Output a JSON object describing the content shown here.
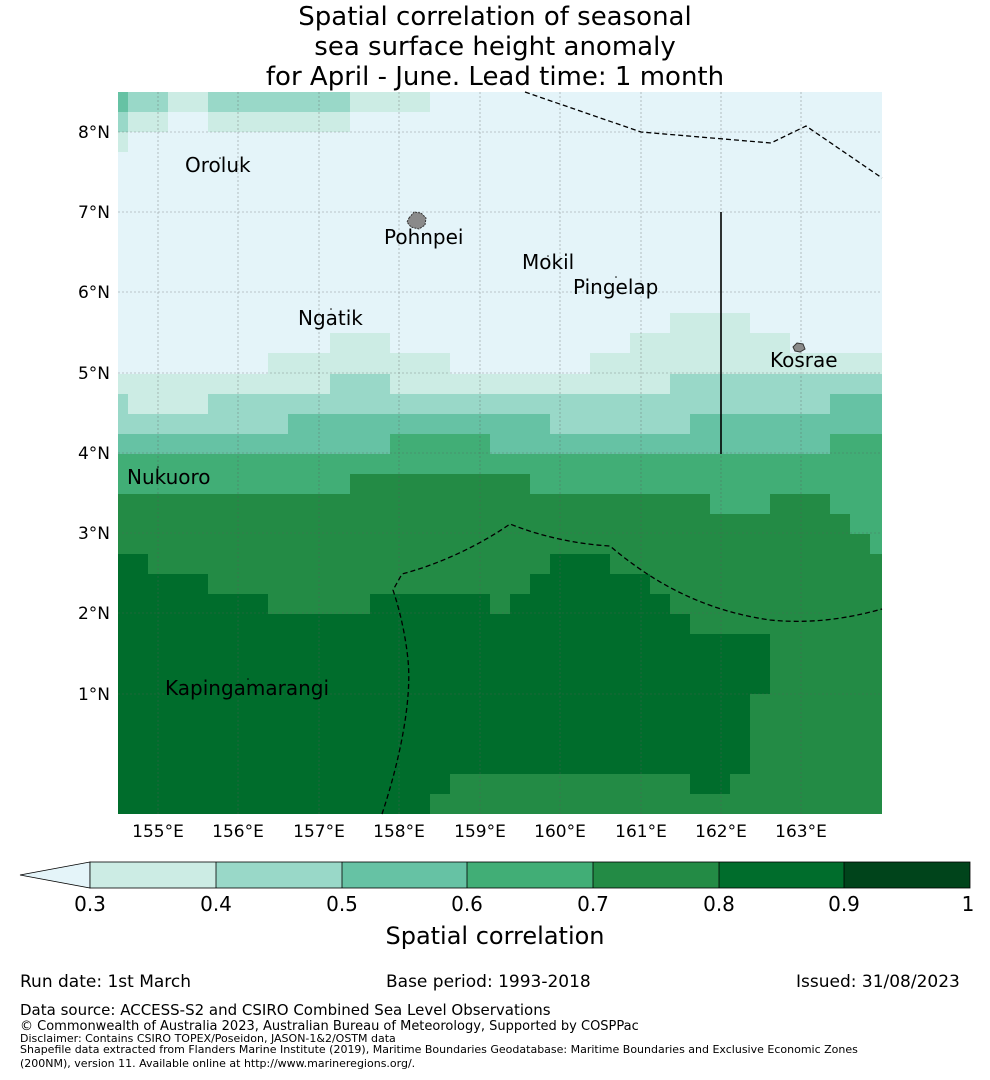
{
  "title": {
    "line1": "Spatial correlation of seasonal",
    "line2": "sea surface height anomaly",
    "line3": "for April - June. Lead time: 1 month"
  },
  "map": {
    "lat_ticks": [
      "8°N",
      "7°N",
      "6°N",
      "5°N",
      "4°N",
      "3°N",
      "2°N",
      "1°N"
    ],
    "lon_ticks": [
      "155°E",
      "156°E",
      "157°E",
      "158°E",
      "159°E",
      "160°E",
      "161°E",
      "162°E",
      "163°E"
    ],
    "places": [
      {
        "name": "Oroluk"
      },
      {
        "name": "Pohnpei"
      },
      {
        "name": "Mokil"
      },
      {
        "name": "Pingelap"
      },
      {
        "name": "Ngatik"
      },
      {
        "name": "Kosrae"
      },
      {
        "name": "Nukuoro"
      },
      {
        "name": "Kapingamarangi"
      }
    ],
    "bin_colors": [
      "#e4f4f9",
      "#ccece4",
      "#99d8c8",
      "#66c2a4",
      "#41ae76",
      "#238b45",
      "#006d2c",
      "#00441b"
    ]
  },
  "colorbar": {
    "ticks": [
      "0.3",
      "0.4",
      "0.5",
      "0.6",
      "0.7",
      "0.8",
      "0.9",
      "1"
    ],
    "colors": [
      "#ccece4",
      "#99d8c8",
      "#66c2a4",
      "#41ae76",
      "#238b45",
      "#006d2c",
      "#00441b"
    ],
    "extend_color": "#e4f4f9",
    "label": "Spatial correlation"
  },
  "meta": {
    "run_date": "Run date: 1st March",
    "base_period": "Base period: 1993-2018",
    "issued": "Issued: 31/08/2023"
  },
  "footer": {
    "data_source": "Data source: ACCESS-S2 and CSIRO Combined Sea Level Observations",
    "copyright": "© Commonwealth of Australia 2023, Australian Bureau of Meteorology, Supported by COSPPac",
    "disclaimer": "Disclaimer: Contains CSIRO TOPEX/Poseidon, JASON-1&2/OSTM data",
    "shapefile_1": "Shapefile data extracted from Flanders Marine Institute (2019), Maritime Boundaries Geodatabase: Maritime Boundaries and Exclusive Economic Zones",
    "shapefile_2": "(200NM), version 11. Available online at http://www.marineregions.org/."
  }
}
